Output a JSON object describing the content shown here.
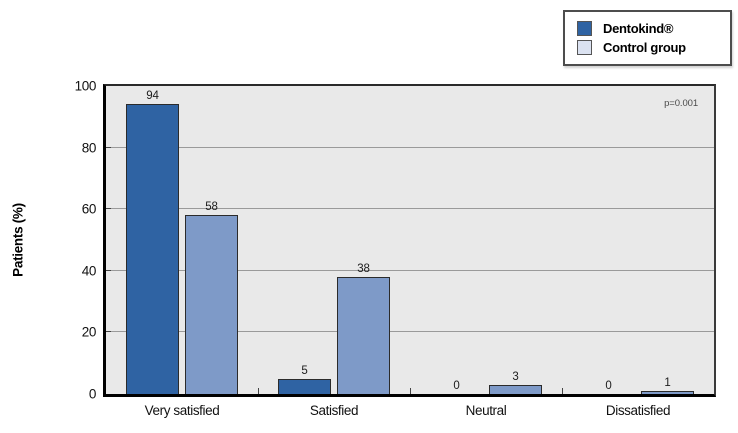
{
  "chart_data": {
    "type": "bar",
    "title": "",
    "xlabel": "",
    "ylabel": "Patients (%)",
    "categories": [
      "Very satisfied",
      "Satisfied",
      "Neutral",
      "Dissatisfied"
    ],
    "series": [
      {
        "name": "Dentokind®",
        "color": "#2f63a3",
        "legend_color": "#2f63a3",
        "values": [
          94,
          5,
          0,
          0
        ]
      },
      {
        "name": "Control group",
        "color": "#7e9ac8",
        "legend_color": "#dbe2f1",
        "values": [
          58,
          38,
          3,
          1
        ]
      }
    ],
    "ylim": [
      0,
      100
    ],
    "ytick_step": 20,
    "grid": true,
    "legend_position": "top-right",
    "annotation": "p=0.001",
    "colors": {
      "plot_background": "#e9e9e9",
      "gridline": "#9a9a9a",
      "axis": "#000000",
      "bar_border": "#2b2b2b",
      "tick": "#444444"
    }
  }
}
